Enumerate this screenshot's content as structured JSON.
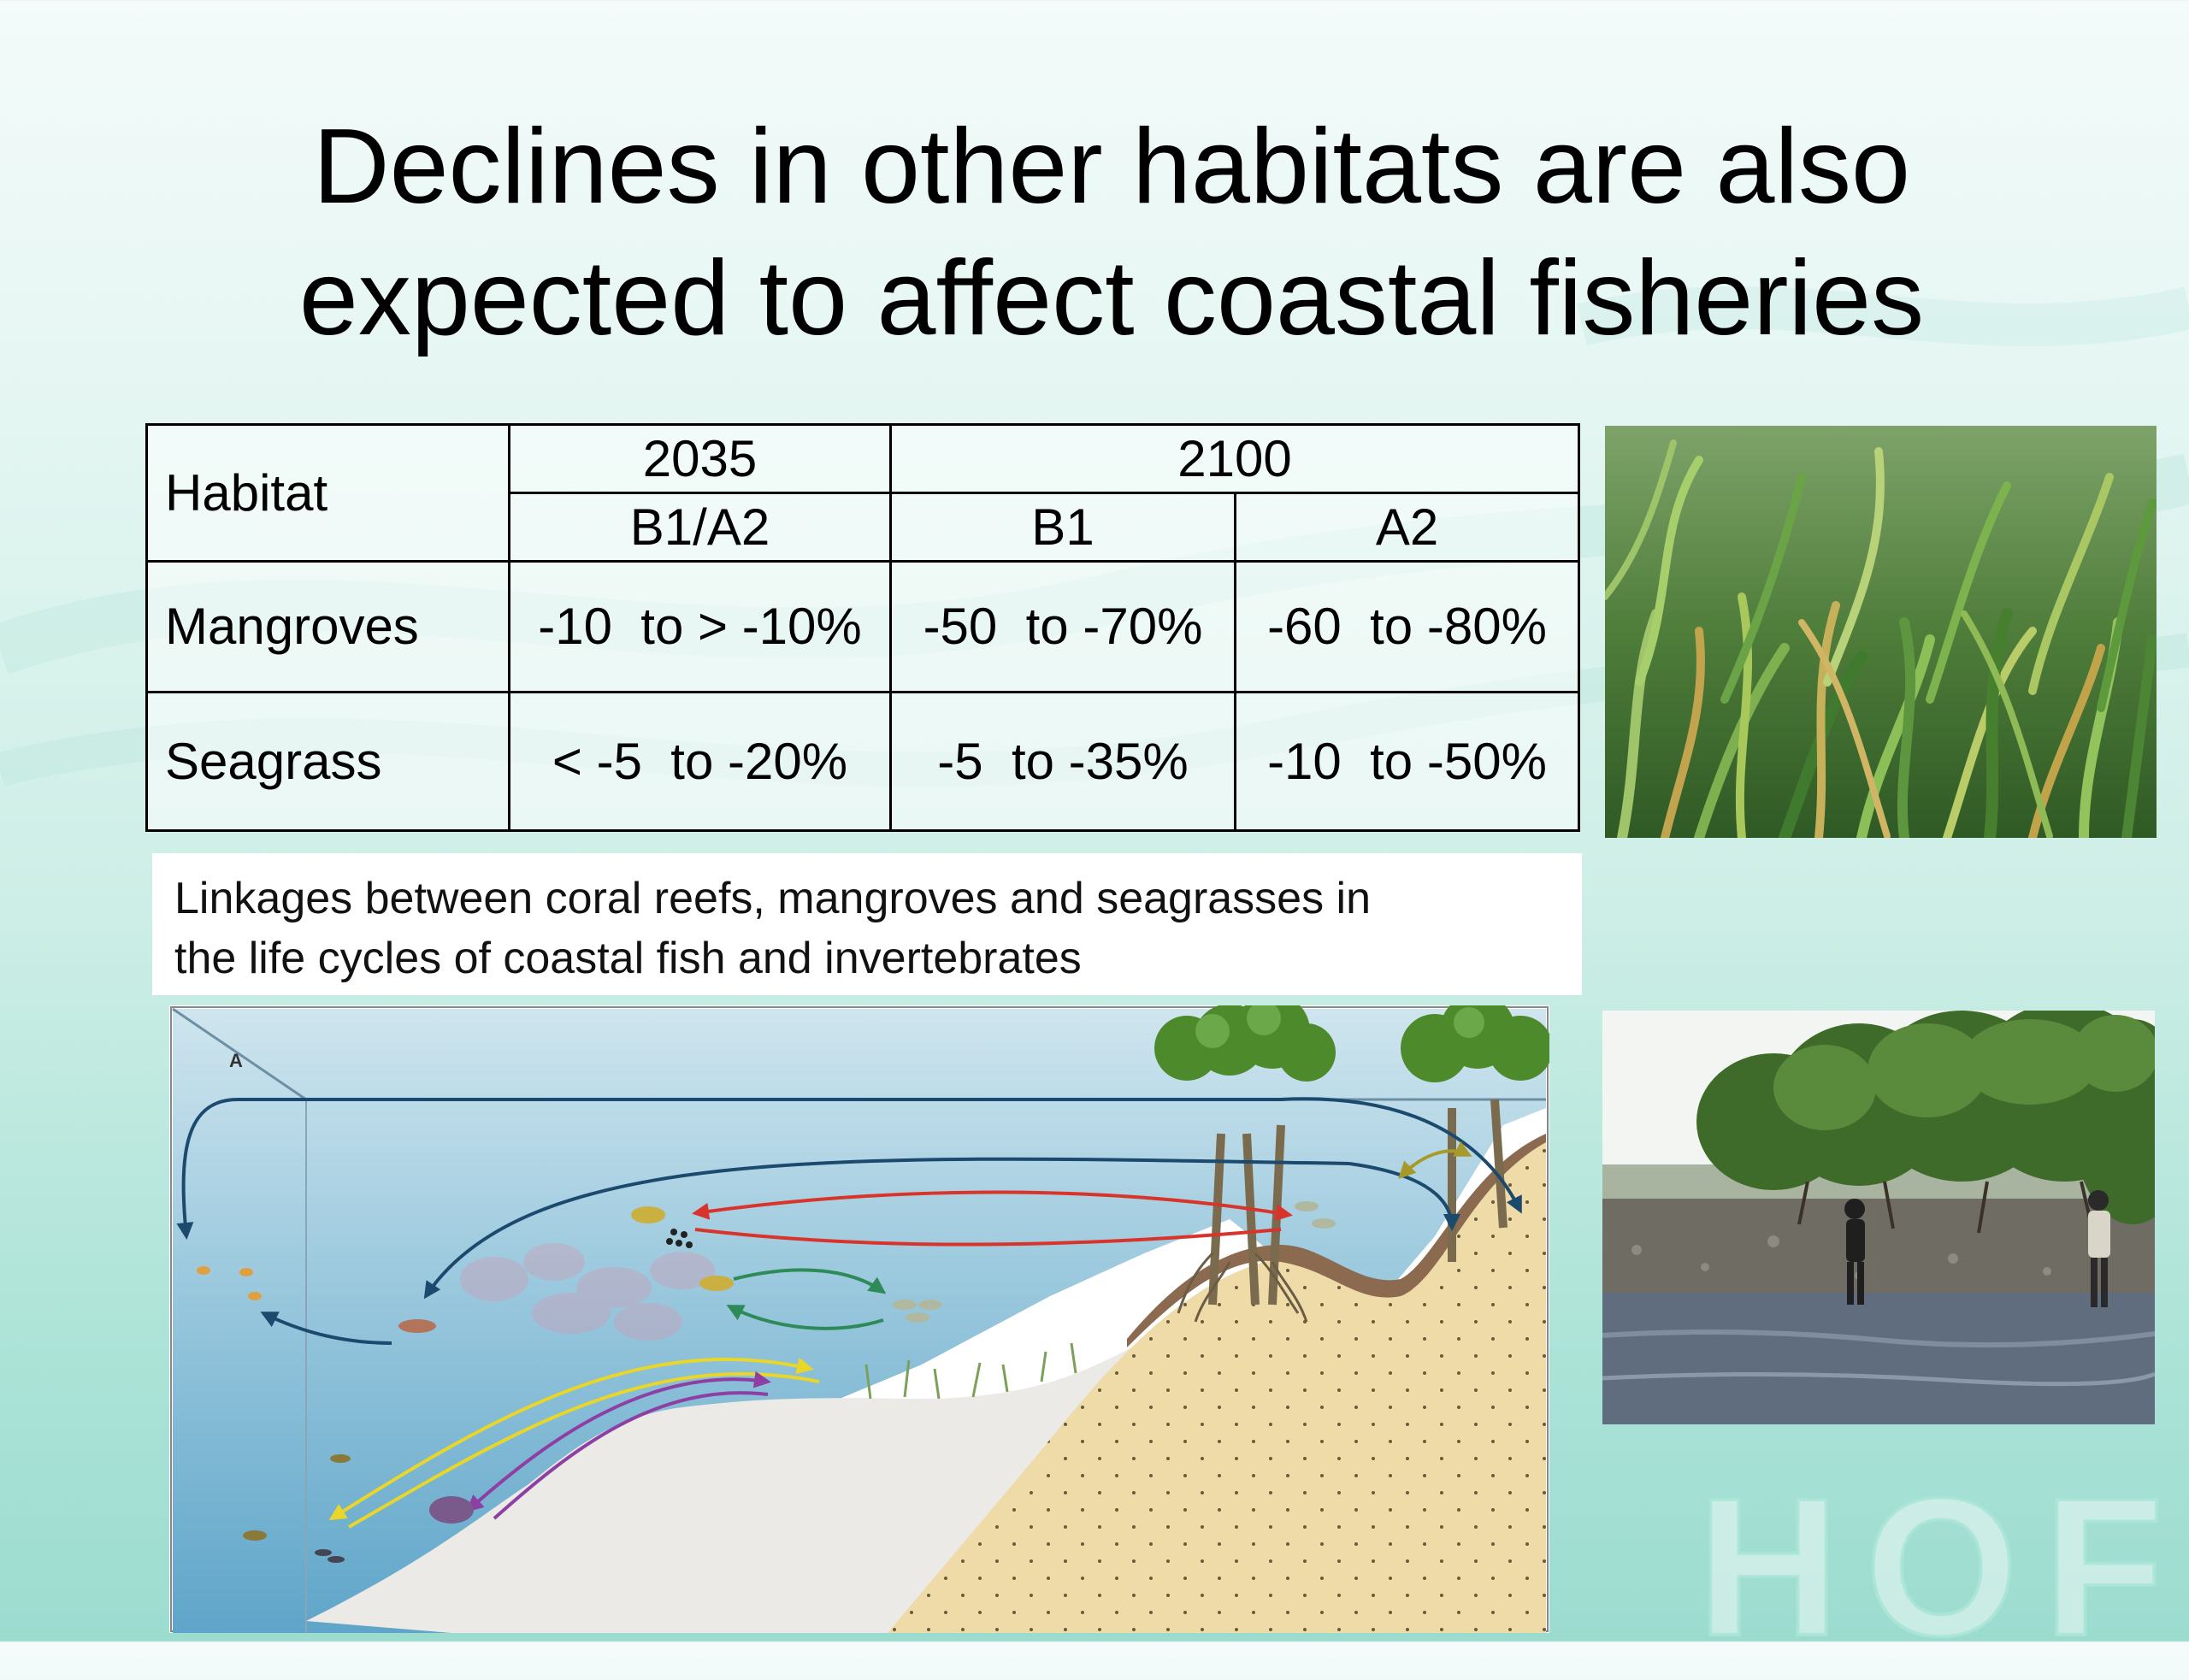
{
  "title": {
    "line1": "Declines in other habitats are also",
    "line2": "expected to affect coastal fisheries"
  },
  "table": {
    "habitat_header": "Habitat",
    "year_2035": "2035",
    "year_2100": "2100",
    "sub_b1a2": "B1/A2",
    "sub_b1": "B1",
    "sub_a2": "A2",
    "rows": [
      {
        "habitat": "Mangroves",
        "v2035": "-10  to > -10%",
        "b1": "-50  to -70%",
        "a2": "-60  to -80%"
      },
      {
        "habitat": "Seagrass",
        "v2035": "< -5  to -20%",
        "b1": "-5  to -35%",
        "a2": "-10  to -50%"
      }
    ]
  },
  "caption": {
    "line1": "Linkages between coral reefs, mangroves and seagrasses in",
    "line2": "the life cycles of coastal fish and invertebrates"
  },
  "diagram": {
    "panel_label": "A",
    "arrow_colors": {
      "navy": "#1c4a6e",
      "red": "#d9342b",
      "green": "#2e8b57",
      "yellow": "#e8d62a",
      "purple": "#8e3fa3",
      "olive": "#a89a2a"
    }
  },
  "watermark": {
    "text": "HOF"
  },
  "photos": {
    "seagrass": "seagrass-photo",
    "mangrove": "mangrove-photo"
  }
}
